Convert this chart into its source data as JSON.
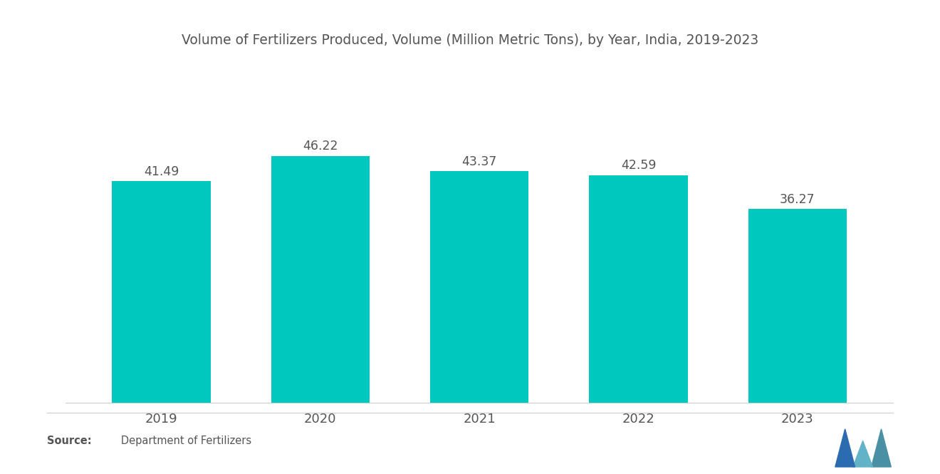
{
  "title": "Volume of Fertilizers Produced, Volume (Million Metric Tons), by Year, India, 2019-2023",
  "years": [
    "2019",
    "2020",
    "2021",
    "2022",
    "2023"
  ],
  "values": [
    41.49,
    46.22,
    43.37,
    42.59,
    36.27
  ],
  "bar_color": "#00C8BE",
  "background_color": "#ffffff",
  "title_fontsize": 13.5,
  "label_fontsize": 13,
  "value_fontsize": 12.5,
  "source_bold": "Source:",
  "source_normal": "   Department of Fertilizers",
  "ylim": [
    0,
    55
  ],
  "bar_width": 0.62,
  "title_color": "#555555",
  "tick_color": "#555555",
  "value_color": "#555555"
}
